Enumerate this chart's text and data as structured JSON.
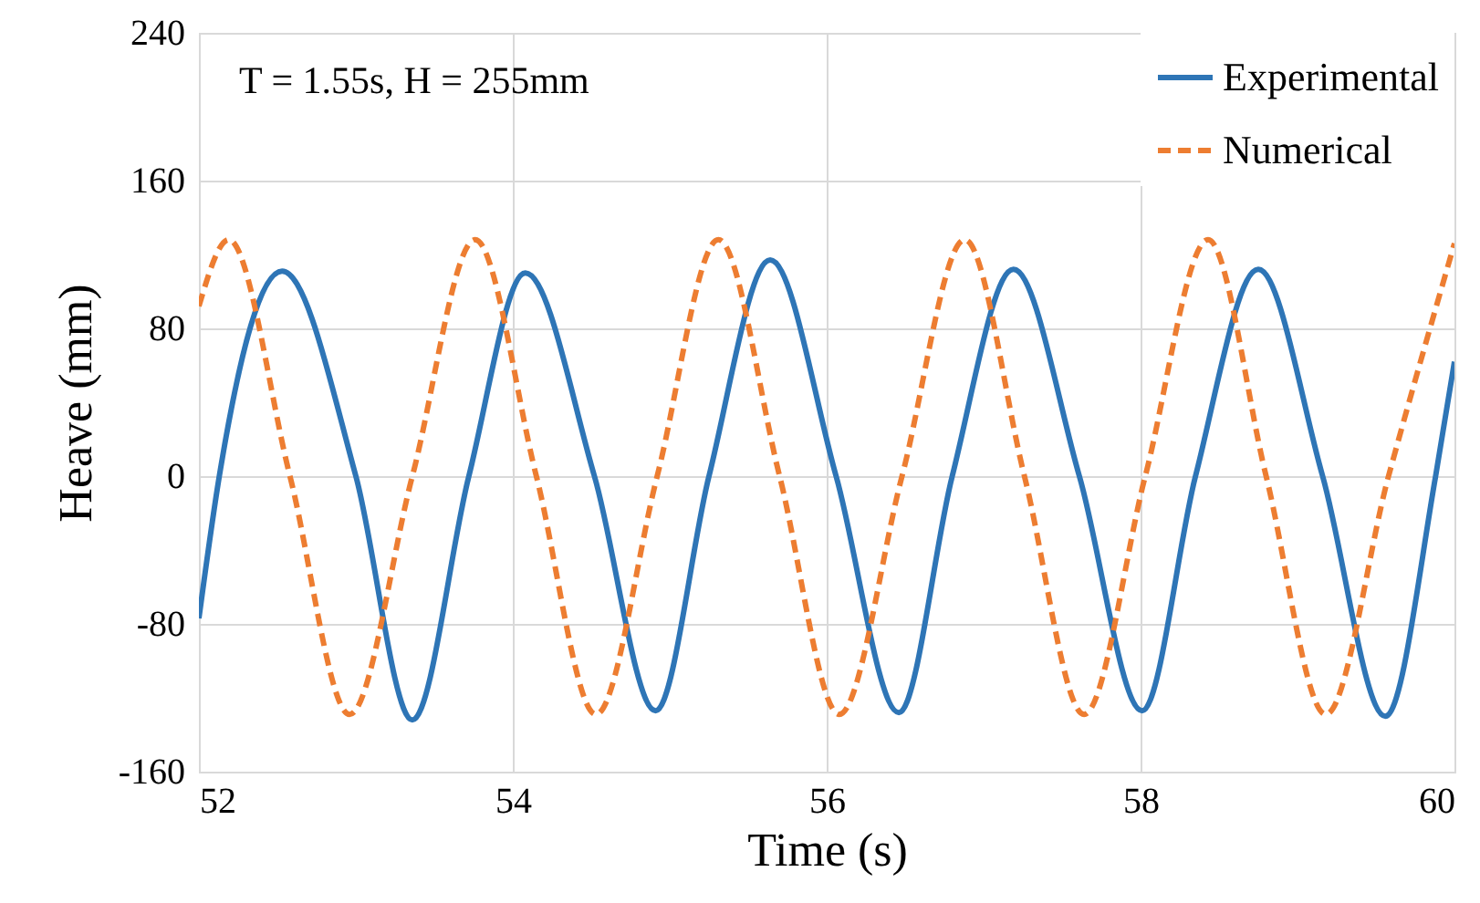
{
  "chart_data": {
    "type": "line",
    "xlabel": "Time (s)",
    "ylabel": "Heave (mm)",
    "annotations": [
      "T = 1.55s, H = 255mm"
    ],
    "xlim": [
      52,
      60
    ],
    "xticks": [
      52,
      54,
      56,
      58,
      60
    ],
    "ylim": [
      -160,
      240
    ],
    "yticks": [
      -160,
      -80,
      0,
      80,
      160,
      240
    ],
    "grid": true,
    "legend": "top right",
    "marker": "none",
    "series": [
      {
        "name": "Experimental",
        "color": "#2e75b6",
        "line_style": "solid",
        "x": [
          52,
          52.13,
          52.53,
          53.0,
          53.36,
          53.72,
          54.08,
          54.52,
          54.91,
          55.25,
          55.64,
          56.06,
          56.46,
          56.8,
          57.19,
          57.61,
          58.01,
          58.35,
          58.75,
          59.16,
          59.56,
          59.88,
          60
        ],
        "values": [
          -77,
          0,
          111,
          0,
          -132,
          0,
          110,
          0,
          -127,
          0,
          117,
          0,
          -128,
          0,
          112,
          0,
          -127,
          0,
          112,
          0,
          -130,
          0,
          62
        ]
      },
      {
        "name": "Numerical",
        "color": "#ed7d31",
        "line_style": "dashed",
        "x": [
          52,
          52.19,
          52.58,
          52.96,
          53.36,
          53.76,
          54.15,
          54.53,
          54.92,
          55.31,
          55.7,
          56.08,
          56.48,
          56.88,
          57.26,
          57.64,
          58.03,
          58.43,
          58.8,
          59.18,
          59.58,
          60
        ],
        "values": [
          92,
          128,
          0,
          -129,
          0,
          128,
          0,
          -129,
          0,
          128,
          0,
          -129,
          0,
          128,
          0,
          -129,
          0,
          128,
          0,
          -129,
          0,
          126
        ]
      }
    ]
  }
}
